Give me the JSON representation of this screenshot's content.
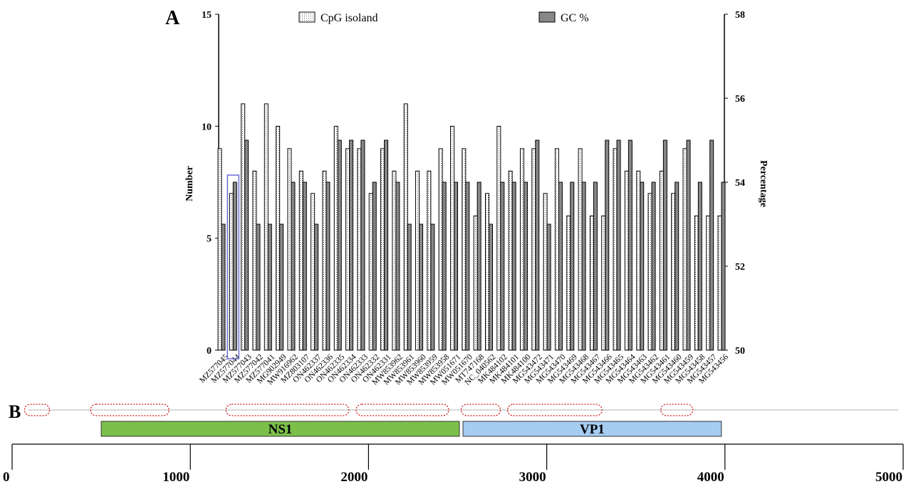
{
  "chart_data": [
    {
      "type": "bar",
      "panel_label": "A",
      "ylabel": "Number",
      "y2label": "Percentage",
      "ylim": [
        0,
        15
      ],
      "y2lim": [
        50,
        58
      ],
      "yticks": [
        0,
        5,
        10,
        15
      ],
      "y2ticks": [
        50,
        52,
        54,
        56,
        58
      ],
      "legend_position": "top",
      "highlight_category": "MZ577044",
      "highlight_color": "#6b6bd6",
      "categories": [
        "MZ577045",
        "MZ577044",
        "MZ577043",
        "MZ577042",
        "MZ577041",
        "MG902949",
        "MW916962",
        "MZ803107",
        "ON462337",
        "ON462336",
        "ON462335",
        "ON462334",
        "ON462333",
        "ON462332",
        "ON462331",
        "MW853962",
        "MW853961",
        "MW853960",
        "MW853959",
        "MW853958",
        "MW051671",
        "MW051670",
        "MT747168",
        "NC_040562",
        "MK484102",
        "MK484101",
        "MK484100",
        "MG543472",
        "MG543471",
        "MG543470",
        "MG543469",
        "MG543468",
        "MG543467",
        "MG543466",
        "MG543465",
        "MG543464",
        "MG543463",
        "MG543462",
        "MG543461",
        "MG543460",
        "MG543459",
        "MG543458",
        "MG543457",
        "MG543456"
      ],
      "series": [
        {
          "name": "CpG isoland",
          "axis": "left",
          "pattern": "dotted",
          "values": [
            9,
            7,
            11,
            8,
            11,
            10,
            9,
            8,
            7,
            8,
            10,
            9,
            9,
            7,
            9,
            8,
            11,
            8,
            8,
            9,
            10,
            9,
            6,
            7,
            10,
            8,
            9,
            9,
            7,
            9,
            6,
            9,
            6,
            6,
            9,
            8,
            8,
            7,
            8,
            7,
            9,
            6,
            6,
            6
          ]
        },
        {
          "name": "GC %",
          "axis": "right",
          "pattern": "checker",
          "values": [
            53,
            54,
            55,
            53,
            53,
            53,
            54,
            54,
            53,
            54,
            55,
            55,
            55,
            54,
            55,
            54,
            53,
            53,
            53,
            54,
            54,
            54,
            54,
            53,
            54,
            54,
            54,
            55,
            53,
            54,
            54,
            54,
            54,
            55,
            55,
            55,
            54,
            54,
            55,
            54,
            55,
            54,
            55,
            54
          ]
        }
      ]
    },
    {
      "type": "genome_map",
      "panel_label": "B",
      "xlim": [
        0,
        5000
      ],
      "xticks": [
        0,
        1000,
        2000,
        3000,
        4000,
        5000
      ],
      "genes": [
        {
          "name": "NS1",
          "start": 500,
          "end": 2510,
          "color": "#7cc04a"
        },
        {
          "name": "VP1",
          "start": 2530,
          "end": 3980,
          "color": "#a6ccf0"
        }
      ],
      "cpg_islands": [
        {
          "start": 70,
          "end": 210
        },
        {
          "start": 440,
          "end": 880
        },
        {
          "start": 1200,
          "end": 1890
        },
        {
          "start": 1930,
          "end": 2450
        },
        {
          "start": 2520,
          "end": 2740
        },
        {
          "start": 2780,
          "end": 3310
        },
        {
          "start": 3640,
          "end": 3820
        }
      ]
    }
  ]
}
